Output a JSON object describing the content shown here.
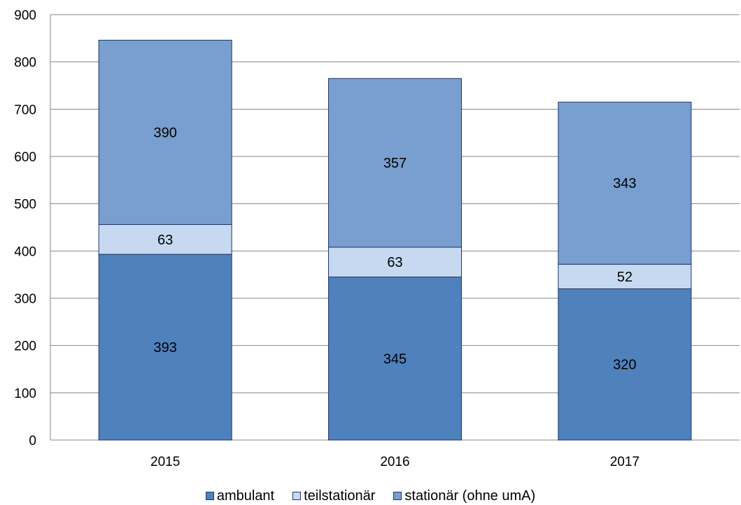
{
  "chart_data": {
    "type": "bar",
    "stacked": true,
    "categories": [
      "2015",
      "2016",
      "2017"
    ],
    "series": [
      {
        "name": "ambulant",
        "values": [
          393,
          345,
          320
        ],
        "color": "#4f81bd"
      },
      {
        "name": "teilstationär",
        "values": [
          63,
          63,
          52
        ],
        "color": "#c6d9f1"
      },
      {
        "name": "stationär (ohne umA)",
        "values": [
          390,
          357,
          343
        ],
        "color": "#789fcf"
      }
    ],
    "yticks": [
      "0",
      "100",
      "200",
      "300",
      "400",
      "500",
      "600",
      "700",
      "800",
      "900"
    ],
    "ylim": [
      0,
      900
    ],
    "grid": true,
    "legend_position": "bottom",
    "title": "",
    "xlabel": "",
    "ylabel": ""
  }
}
